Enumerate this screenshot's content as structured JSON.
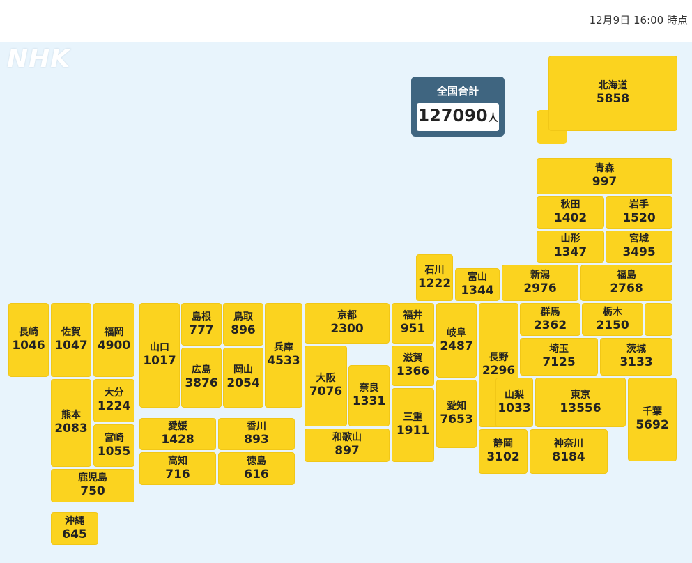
{
  "timestamp": "12月9日 16:00 時点",
  "logo": "NHK",
  "total": {
    "label": "全国合計",
    "value": "127090",
    "unit": "人"
  },
  "prefectures": [
    {
      "name": "北海道",
      "count": "5858"
    },
    {
      "name": "青森",
      "count": "997"
    },
    {
      "name": "秋田",
      "count": "1402"
    },
    {
      "name": "岩手",
      "count": "1520"
    },
    {
      "name": "山形",
      "count": "1347"
    },
    {
      "name": "宮城",
      "count": "3495"
    },
    {
      "name": "石川",
      "count": "1222"
    },
    {
      "name": "富山",
      "count": "1344"
    },
    {
      "name": "新潟",
      "count": "2976"
    },
    {
      "name": "福島",
      "count": "2768"
    },
    {
      "name": "長崎",
      "count": "1046"
    },
    {
      "name": "佐賀",
      "count": "1047"
    },
    {
      "name": "福岡",
      "count": "4900"
    },
    {
      "name": "山口",
      "count": "1017"
    },
    {
      "name": "島根",
      "count": "777"
    },
    {
      "name": "鳥取",
      "count": "896"
    },
    {
      "name": "兵庫",
      "count": "4533"
    },
    {
      "name": "京都",
      "count": "2300"
    },
    {
      "name": "福井",
      "count": "951"
    },
    {
      "name": "岐阜",
      "count": "2487"
    },
    {
      "name": "長野",
      "count": "2296"
    },
    {
      "name": "群馬",
      "count": "2362"
    },
    {
      "name": "栃木",
      "count": "2150"
    },
    {
      "name": "埼玉",
      "count": "7125"
    },
    {
      "name": "茨城",
      "count": "3133"
    },
    {
      "name": "広島",
      "count": "3876"
    },
    {
      "name": "岡山",
      "count": "2054"
    },
    {
      "name": "大阪",
      "count": "7076"
    },
    {
      "name": "奈良",
      "count": "1331"
    },
    {
      "name": "滋賀",
      "count": "1366"
    },
    {
      "name": "三重",
      "count": "1911"
    },
    {
      "name": "愛知",
      "count": "7653"
    },
    {
      "name": "熊本",
      "count": "2083"
    },
    {
      "name": "大分",
      "count": "1224"
    },
    {
      "name": "宮崎",
      "count": "1055"
    },
    {
      "name": "山梨",
      "count": "1033"
    },
    {
      "name": "東京",
      "count": "13556"
    },
    {
      "name": "千葉",
      "count": "5692"
    },
    {
      "name": "愛媛",
      "count": "1428"
    },
    {
      "name": "香川",
      "count": "893"
    },
    {
      "name": "高知",
      "count": "716"
    },
    {
      "name": "徳島",
      "count": "616"
    },
    {
      "name": "和歌山",
      "count": "897"
    },
    {
      "name": "静岡",
      "count": "3102"
    },
    {
      "name": "神奈川",
      "count": "8184"
    },
    {
      "name": "鹿児島",
      "count": "750"
    },
    {
      "name": "沖縄",
      "count": "645"
    }
  ]
}
